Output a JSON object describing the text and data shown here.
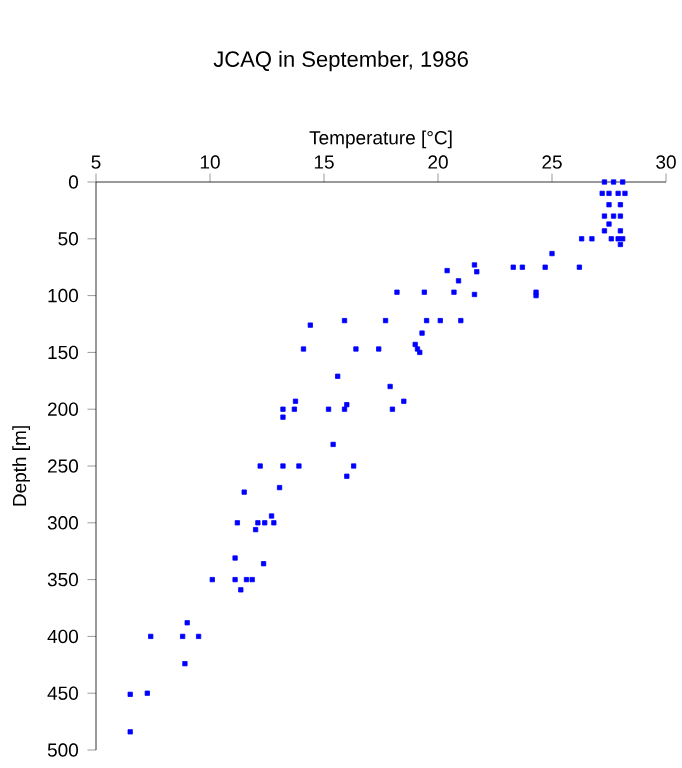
{
  "chart_data": {
    "type": "scatter",
    "title": "JCAQ in September, 1986",
    "xlabel": "Temperature [°C]",
    "ylabel": "Depth [m]",
    "xlim": [
      5,
      30
    ],
    "xticks": [
      5,
      10,
      15,
      20,
      25,
      30
    ],
    "ylim": [
      500,
      0
    ],
    "yticks": [
      0,
      50,
      100,
      150,
      200,
      250,
      300,
      350,
      400,
      450,
      500
    ],
    "marker": "square",
    "grid": false,
    "series": [
      {
        "color": "#0000ff",
        "x": [
          27.3,
          27.7,
          28.1,
          27.2,
          27.5,
          27.9,
          28.2,
          27.5,
          28.0,
          27.3,
          27.7,
          28.0,
          27.5,
          27.3,
          28.0,
          27.6,
          27.9,
          28.1,
          28.0,
          26.3,
          26.75,
          25.0,
          24.7,
          26.2,
          23.3,
          23.7,
          24.3,
          24.3,
          21.6,
          21.7,
          20.4,
          20.9,
          20.7,
          21.6,
          19.4,
          18.2,
          15.9,
          17.7,
          19.5,
          20.1,
          21.0,
          14.4,
          19.3,
          14.1,
          16.4,
          17.4,
          19.0,
          19.1,
          19.2,
          15.6,
          17.9,
          18.0,
          18.5,
          15.2,
          15.9,
          16.0,
          15.4,
          16.3,
          16.0,
          13.2,
          13.2,
          13.7,
          13.75,
          12.2,
          13.2,
          13.9,
          13.05,
          11.5,
          11.2,
          12.1,
          12.4,
          12.8,
          12.7,
          12.0,
          12.35,
          11.1,
          10.1,
          11.1,
          11.6,
          11.85,
          11.35,
          7.4,
          8.8,
          9.5,
          9.0,
          8.9,
          6.5,
          7.25,
          6.5
        ],
        "values": [
          0,
          0,
          0,
          10,
          10,
          10,
          10,
          20,
          20,
          30,
          30,
          30,
          37,
          43,
          43,
          50,
          50,
          50,
          55,
          50,
          50,
          63,
          75,
          75,
          75,
          75,
          97,
          100,
          73,
          79,
          78,
          87,
          97,
          99,
          97,
          97,
          122,
          122,
          122,
          122,
          122,
          126,
          133,
          147,
          147,
          147,
          143,
          147,
          150,
          171,
          180,
          200,
          193,
          200,
          200,
          196,
          231,
          250,
          259,
          200,
          207,
          200,
          193,
          250,
          250,
          250,
          269,
          273,
          300,
          300,
          300,
          300,
          294,
          306,
          336,
          331,
          350,
          350,
          350,
          350,
          359,
          400,
          400,
          400,
          388,
          424,
          451,
          450,
          484
        ]
      }
    ]
  }
}
